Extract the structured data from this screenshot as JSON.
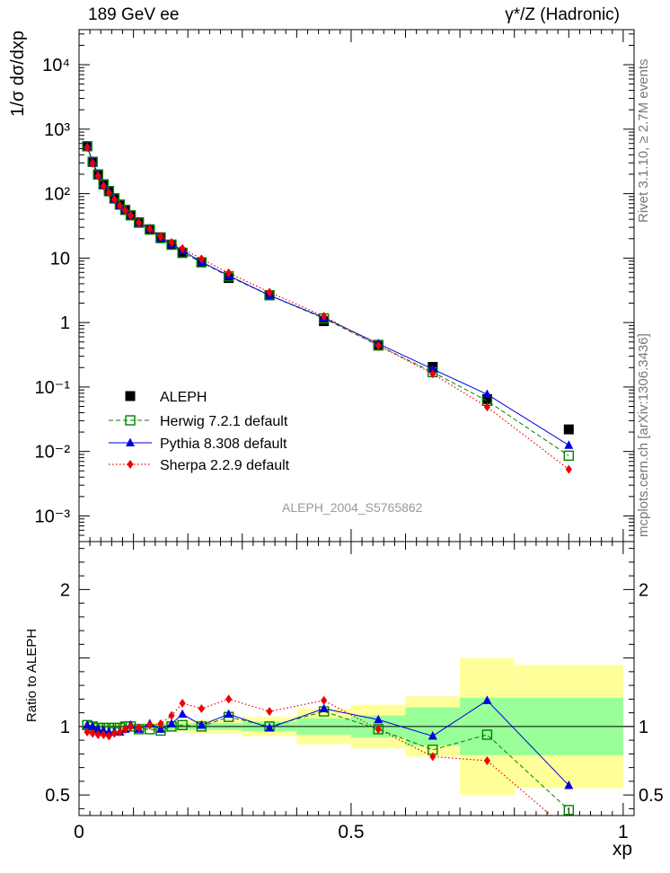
{
  "header": {
    "left": "189 GeV ee",
    "right": "γ*/Z (Hadronic)"
  },
  "side": {
    "rivet": "Rivet 3.1.10, ≥ 2.7M events",
    "mcplots": "mcplots.cern.ch [arXiv:1306.3436]"
  },
  "analysis_id": "ALEPH_2004_S5765862",
  "colors": {
    "ALEPH": "#000000",
    "Herwig": "#008000",
    "Pythia": "#0000dd",
    "Sherpa": "#ee0000",
    "band_inner": "#99ff99",
    "band_outer": "#ffff99"
  },
  "chart_data": [
    {
      "type": "scatter",
      "panel": "main",
      "ylabel": "1/σ dσ/dxp",
      "yscale": "log",
      "ylim": [
        0.0004,
        35000
      ],
      "xlim": [
        0,
        1.02
      ],
      "y_ticklabels": [
        "10⁻³",
        "10⁻²",
        "10⁻¹",
        "1",
        "10",
        "10²",
        "10³",
        "10⁴"
      ],
      "legend_position": "lower-left",
      "x": [
        0.015,
        0.025,
        0.035,
        0.045,
        0.055,
        0.065,
        0.075,
        0.085,
        0.095,
        0.11,
        0.13,
        0.15,
        0.17,
        0.19,
        0.225,
        0.275,
        0.35,
        0.45,
        0.55,
        0.65,
        0.75,
        0.9
      ],
      "series": [
        {
          "name": "ALEPH",
          "marker": "square",
          "values": [
            540,
            310,
            200,
            140,
            110,
            85,
            68,
            56,
            46,
            36,
            28,
            21,
            16.2,
            12,
            8.6,
            4.9,
            2.65,
            1.05,
            0.45,
            0.205,
            0.065,
            0.022
          ]
        },
        {
          "name": "Herwig 7.2.1 default",
          "marker": "open-square",
          "values": [
            545,
            312,
            198,
            139,
            109,
            84,
            67.5,
            56,
            46,
            35.4,
            27.6,
            20.4,
            16.1,
            12.1,
            8.6,
            5.2,
            2.65,
            1.16,
            0.44,
            0.17,
            0.061,
            0.0086
          ]
        },
        {
          "name": "Pythia 8.308 default",
          "marker": "triangle",
          "values": [
            545,
            312,
            196,
            136,
            106,
            82,
            65.5,
            55,
            46.5,
            35.5,
            28.6,
            20.6,
            16.6,
            13.1,
            8.7,
            5.35,
            2.64,
            1.19,
            0.47,
            0.19,
            0.077,
            0.0125
          ]
        },
        {
          "name": "Sherpa 2.2.9 default",
          "marker": "diamond",
          "values": [
            520,
            295,
            188,
            131,
            103,
            81,
            65,
            55,
            46,
            35.5,
            28.3,
            21.5,
            17.5,
            14.1,
            9.7,
            5.9,
            2.95,
            1.25,
            0.44,
            0.16,
            0.049,
            0.0053
          ]
        }
      ]
    },
    {
      "type": "line",
      "panel": "ratio",
      "ylabel": "Ratio to ALEPH",
      "ylim": [
        0.35,
        2.35
      ],
      "y_ticklabels": [
        "0.5",
        "1",
        "2"
      ],
      "x_ticklabels": [
        "0",
        "0.5",
        "1"
      ],
      "xlabel": "xp",
      "xlim": [
        0,
        1.02
      ],
      "x": [
        0.015,
        0.025,
        0.035,
        0.045,
        0.055,
        0.065,
        0.075,
        0.085,
        0.095,
        0.11,
        0.13,
        0.15,
        0.17,
        0.19,
        0.225,
        0.275,
        0.35,
        0.45,
        0.55,
        0.65,
        0.75,
        0.9
      ],
      "series": [
        {
          "name": "Herwig 7.2.1 default",
          "values": [
            1.01,
            1.0,
            0.99,
            0.99,
            0.99,
            0.99,
            0.99,
            1.0,
            1.0,
            0.98,
            0.98,
            0.97,
            1.0,
            1.01,
            1.0,
            1.07,
            1.0,
            1.11,
            0.98,
            0.83,
            0.94,
            0.39
          ]
        },
        {
          "name": "Pythia 8.308 default",
          "values": [
            1.01,
            1.0,
            0.98,
            0.97,
            0.96,
            0.96,
            0.96,
            0.98,
            1.01,
            0.98,
            1.02,
            0.98,
            1.02,
            1.09,
            1.01,
            1.09,
            0.99,
            1.13,
            1.05,
            0.93,
            1.19,
            0.57
          ]
        },
        {
          "name": "Sherpa 2.2.9 default",
          "values": [
            0.96,
            0.95,
            0.94,
            0.94,
            0.93,
            0.95,
            0.96,
            0.98,
            1.0,
            0.99,
            1.01,
            1.02,
            1.08,
            1.17,
            1.13,
            1.2,
            1.11,
            1.19,
            0.98,
            0.78,
            0.75,
            0.24
          ]
        }
      ],
      "band_edges": [
        0.01,
        0.02,
        0.03,
        0.04,
        0.05,
        0.06,
        0.07,
        0.08,
        0.09,
        0.1,
        0.12,
        0.14,
        0.16,
        0.18,
        0.2,
        0.25,
        0.3,
        0.4,
        0.5,
        0.6,
        0.7,
        0.8,
        1.0
      ],
      "band_inner": [
        0.015,
        0.015,
        0.015,
        0.015,
        0.015,
        0.015,
        0.015,
        0.015,
        0.02,
        0.02,
        0.02,
        0.02,
        0.025,
        0.025,
        0.025,
        0.025,
        0.035,
        0.06,
        0.08,
        0.14,
        0.21,
        0.21
      ],
      "band_outer": [
        0.02,
        0.02,
        0.02,
        0.02,
        0.02,
        0.02,
        0.02,
        0.02,
        0.025,
        0.025,
        0.03,
        0.03,
        0.04,
        0.04,
        0.05,
        0.05,
        0.07,
        0.13,
        0.16,
        0.22,
        0.5,
        0.45
      ]
    }
  ]
}
